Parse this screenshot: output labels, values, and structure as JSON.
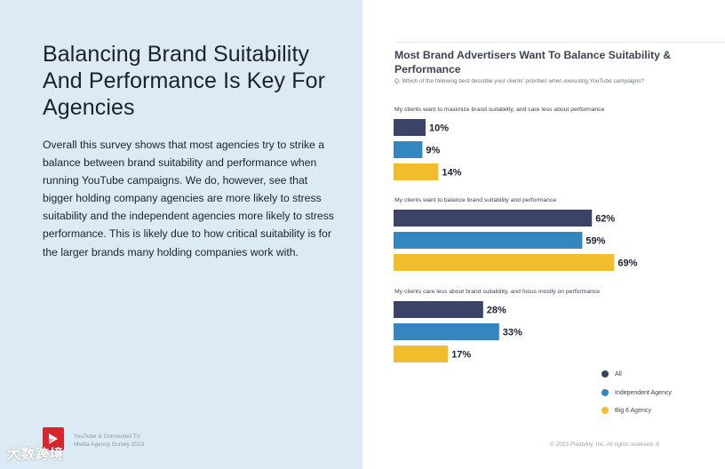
{
  "left": {
    "headline": "Balancing Brand Suitability And Performance Is Key For Agencies",
    "body": "Overall this survey shows that most agencies try to strike a balance between brand suitability and performance when running YouTube campaigns. We do, however, see that bigger holding company agencies are more likely to stress suitability and the independent agencies more likely to stress performance. This is likely due to how critical suitability is for the larger brands many holding companies work with.",
    "footer_line1": "YouTube & Connected TV",
    "footer_line2": "Media Agency Survey 2023",
    "logo_icon": "pixability-logo-icon",
    "watermark": "大数跨境"
  },
  "footer_right": "© 2023 Pixability, Inc. All rights reserved.   6",
  "colors": {
    "all": "#3b4467",
    "independent": "#3386c0",
    "big6": "#f2bd2c",
    "left_bg": "#dbeaf4"
  },
  "chart_data": {
    "type": "bar",
    "orientation": "horizontal",
    "title": "Most Brand Advertisers Want To Balance Suitability & Performance",
    "subtitle": "Q. Which of the following best describe your clients' priorities when executing YouTube campaigns?",
    "unit": "%",
    "xlim": [
      0,
      100
    ],
    "grid": false,
    "legend_position": "bottom-right",
    "categories": [
      "My clients want to maximize brand suitability, and care less about performance",
      "My clients want to balance brand suitability and performance",
      "My clients care less about brand suitability, and focus mostly on performance"
    ],
    "series": [
      {
        "name": "All",
        "values": [
          10,
          62,
          28
        ]
      },
      {
        "name": "Independent Agency",
        "values": [
          9,
          59,
          33
        ]
      },
      {
        "name": "Big 6 Agency",
        "values": [
          14,
          69,
          17
        ]
      }
    ],
    "value_labels": [
      [
        "10%",
        "62%",
        "28%"
      ],
      [
        "9%",
        "59%",
        "33%"
      ],
      [
        "14%",
        "69%",
        "17%"
      ]
    ]
  }
}
